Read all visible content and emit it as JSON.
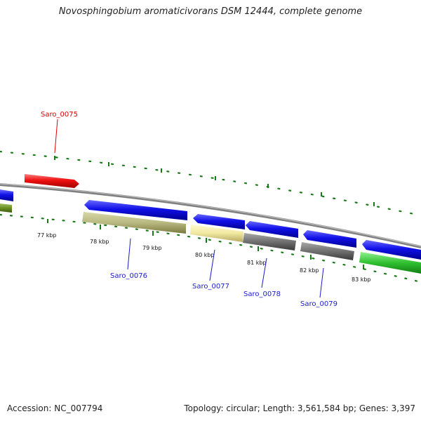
{
  "header": {
    "title": "Novosphingobium aromaticivorans DSM 12444, complete genome"
  },
  "footer": {
    "accession": "Accession: NC_007794",
    "stats": "Topology: circular; Length: 3,561,584 bp; Genes: 3,397"
  },
  "scale_labels": [
    "77 kbp",
    "78 kbp",
    "79 kbp",
    "80 kbp",
    "81 kbp",
    "82 kbp",
    "83 kbp"
  ],
  "gene_labels": [
    {
      "id": "Saro_0075",
      "color": "#dd0000"
    },
    {
      "id": "Saro_0076",
      "color": "#1a1ad0"
    },
    {
      "id": "Saro_0077",
      "color": "#1a1ad0"
    },
    {
      "id": "Saro_0078",
      "color": "#1a1ad0"
    },
    {
      "id": "Saro_0079",
      "color": "#1a1ad0"
    }
  ],
  "colors": {
    "backbone": "#888888",
    "tick": "#1a7a1a",
    "forward_gene": "#e02020",
    "blue_gene": "#1010e0",
    "olive_gene": "#b8b880",
    "pale_gene": "#f0e8a0",
    "gray_gene": "#707070",
    "green_gene": "#30c030"
  }
}
